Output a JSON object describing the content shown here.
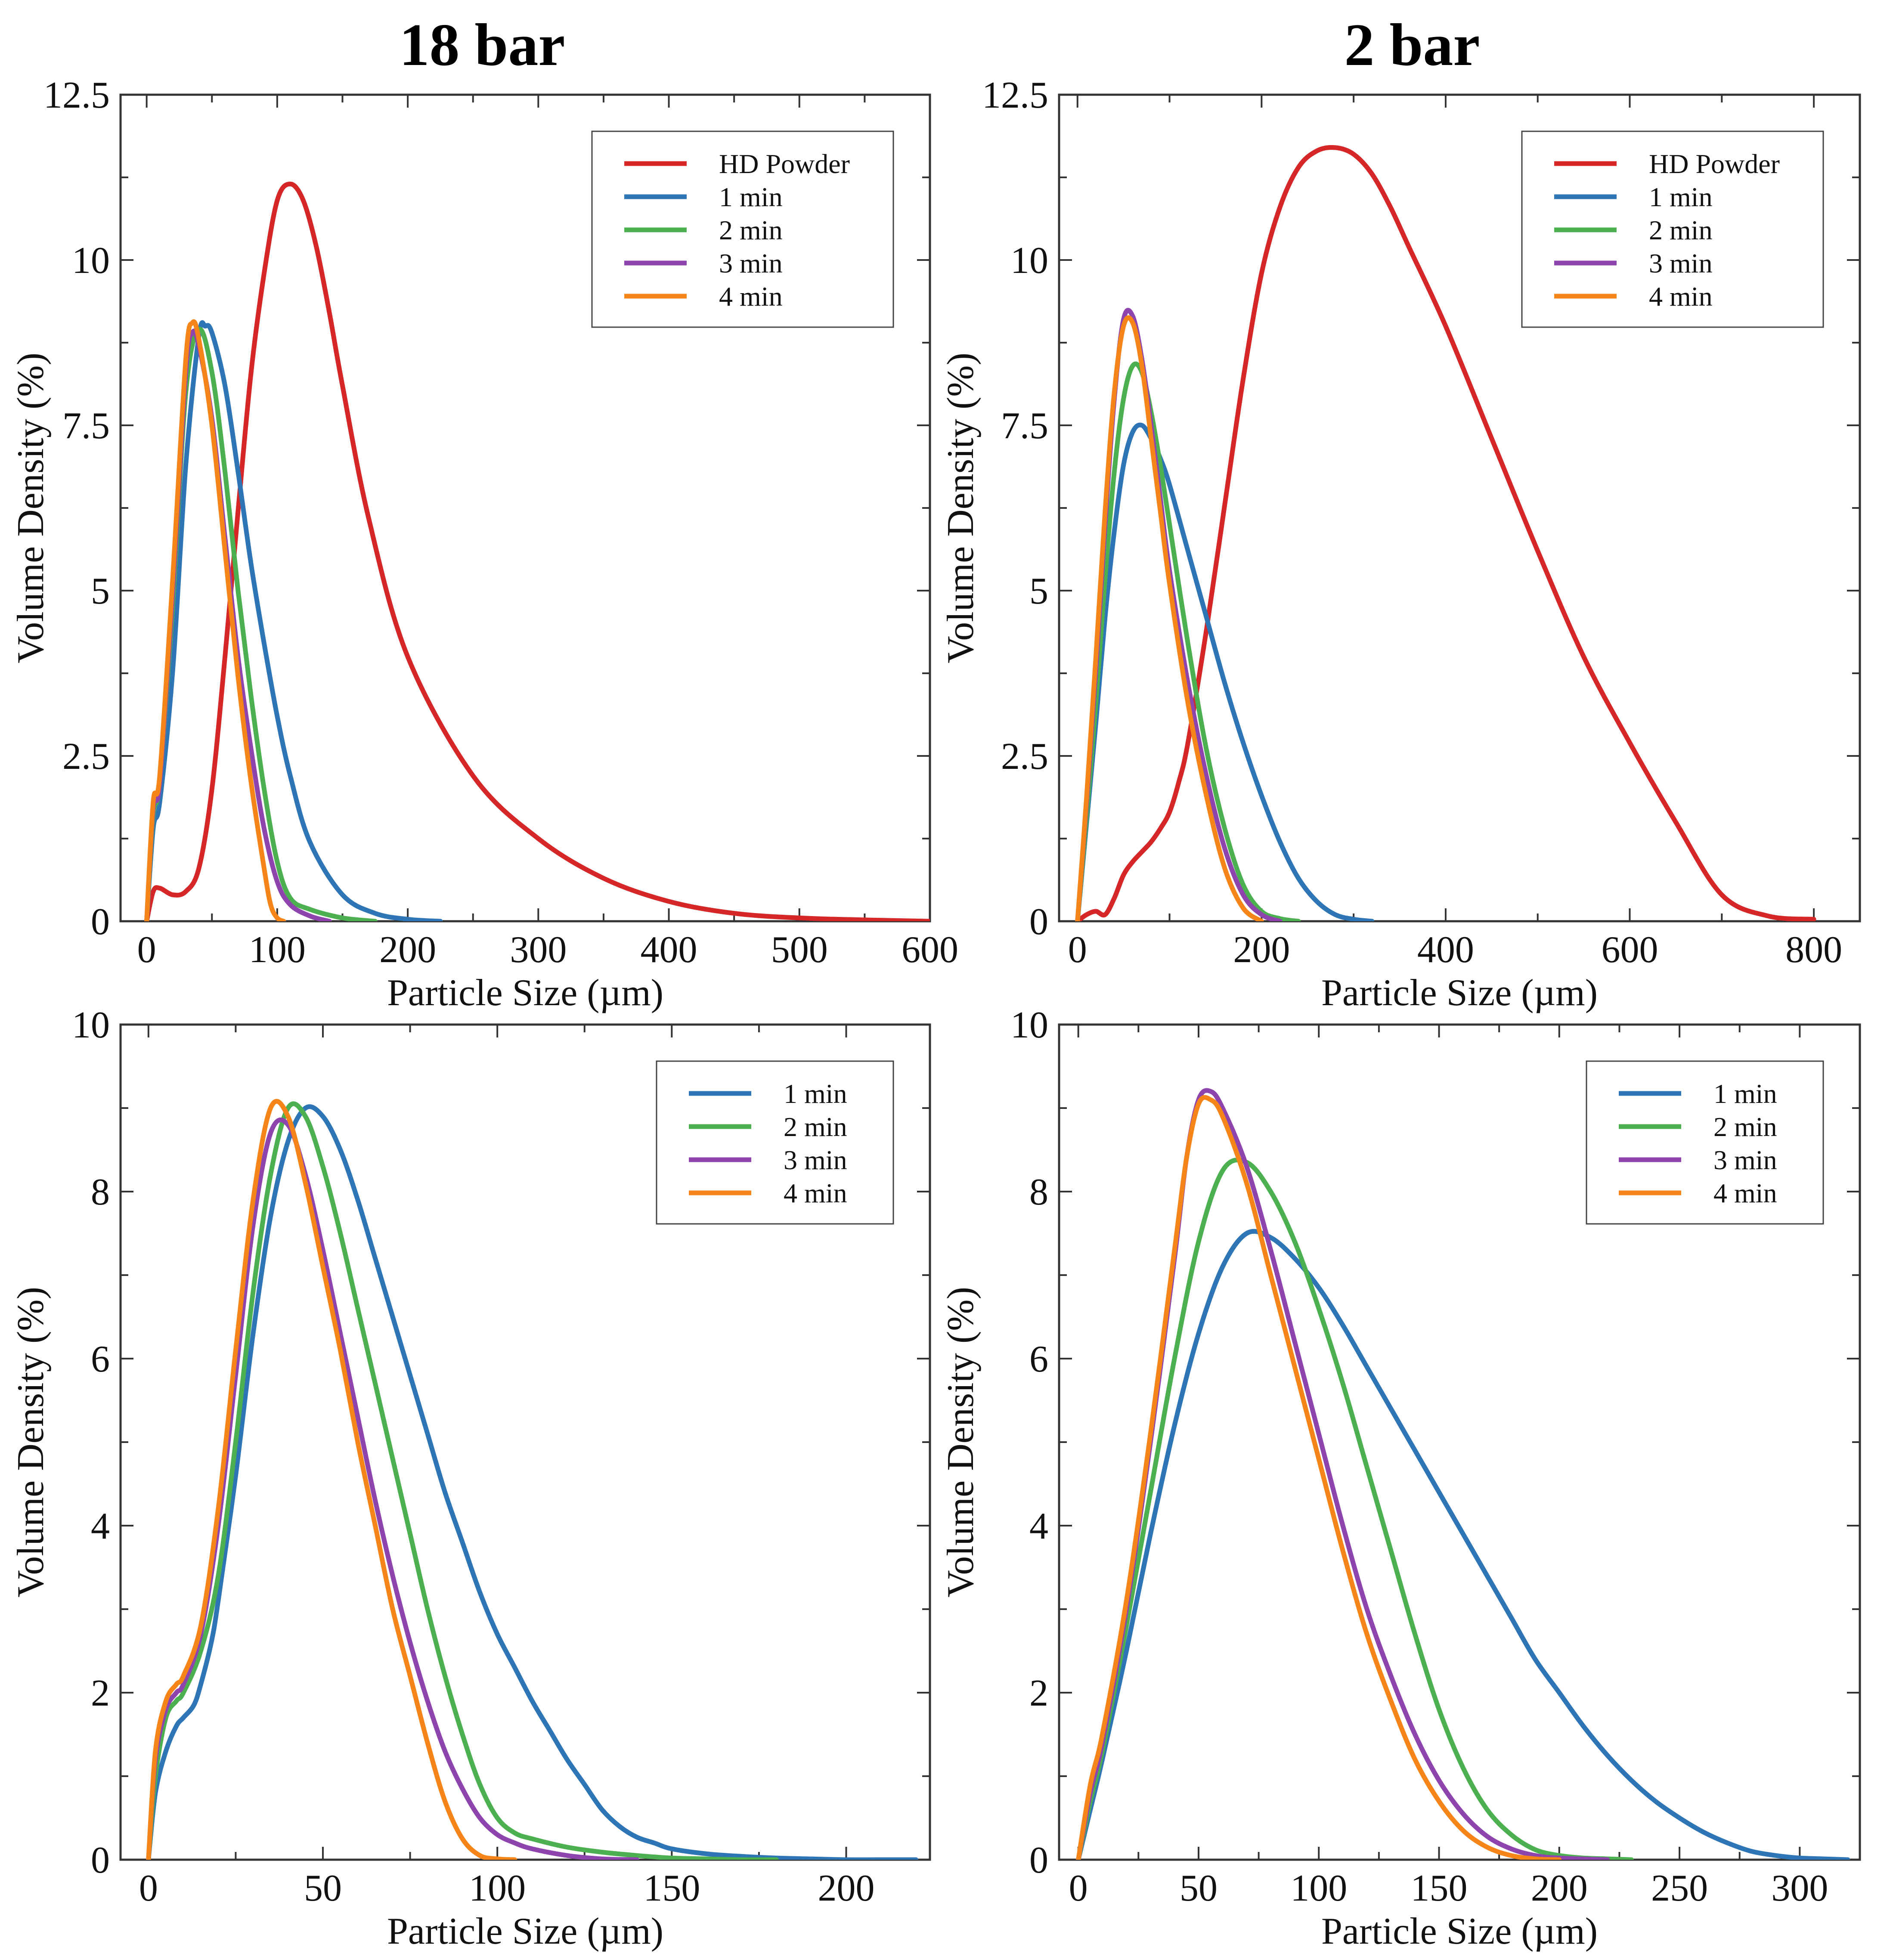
{
  "titles": {
    "left": "18 bar",
    "right": "2 bar"
  },
  "colors": {
    "HD Powder": "#d62728",
    "1 min": "#2e75b6",
    "2 min": "#4caf50",
    "3 min": "#8e44ad",
    "4 min": "#f58518"
  },
  "chart_data": [
    {
      "id": "tl",
      "type": "line",
      "title": "18 bar",
      "xlabel": "Particle Size (µm)",
      "ylabel": "Volume Density (%)",
      "xlim": [
        -20,
        600
      ],
      "ylim": [
        0,
        12.5
      ],
      "xticks": [
        0,
        100,
        200,
        300,
        400,
        500,
        600
      ],
      "yticks": [
        0,
        2.5,
        5,
        7.5,
        10,
        12.5
      ],
      "xtick_labels": [
        "0",
        "100",
        "200",
        "300",
        "400",
        "500",
        "600"
      ],
      "ytick_labels": [
        "0",
        "2.5",
        "5",
        "7.5",
        "10",
        "12.5"
      ],
      "legend_position": "top-right",
      "series": [
        {
          "name": "HD Powder",
          "x": [
            0,
            5,
            10,
            20,
            30,
            40,
            50,
            60,
            70,
            80,
            90,
            100,
            110,
            120,
            130,
            140,
            150,
            170,
            200,
            250,
            300,
            350,
            400,
            450,
            500,
            550,
            600
          ],
          "y": [
            0,
            0.45,
            0.5,
            0.4,
            0.45,
            0.8,
            2.0,
            4.0,
            6.2,
            8.3,
            9.8,
            10.9,
            11.15,
            10.9,
            10.2,
            9.2,
            8.1,
            6.1,
            4.0,
            2.2,
            1.25,
            0.65,
            0.3,
            0.12,
            0.05,
            0.02,
            0
          ]
        },
        {
          "name": "1 min",
          "x": [
            0,
            5,
            10,
            20,
            30,
            40,
            45,
            50,
            60,
            70,
            80,
            90,
            100,
            110,
            125,
            150,
            175,
            200,
            225
          ],
          "y": [
            0,
            1.4,
            1.8,
            3.8,
            6.9,
            8.85,
            9.0,
            8.9,
            8.1,
            6.8,
            5.4,
            4.2,
            3.1,
            2.2,
            1.2,
            0.4,
            0.12,
            0.03,
            0
          ]
        },
        {
          "name": "2 min",
          "x": [
            0,
            5,
            10,
            20,
            30,
            40,
            50,
            60,
            70,
            80,
            90,
            100,
            110,
            125,
            150,
            175
          ],
          "y": [
            0,
            1.6,
            2.1,
            4.8,
            8.0,
            8.95,
            8.3,
            6.8,
            5.0,
            3.4,
            2.0,
            0.9,
            0.35,
            0.18,
            0.05,
            0
          ]
        },
        {
          "name": "3 min",
          "x": [
            0,
            5,
            10,
            20,
            30,
            35,
            40,
            50,
            60,
            70,
            80,
            90,
            100,
            110,
            125,
            140
          ],
          "y": [
            0,
            1.7,
            2.1,
            5.0,
            8.3,
            8.9,
            8.7,
            7.6,
            5.8,
            4.0,
            2.6,
            1.4,
            0.6,
            0.25,
            0.08,
            0
          ]
        },
        {
          "name": "4 min",
          "x": [
            0,
            5,
            10,
            20,
            30,
            35,
            40,
            50,
            60,
            70,
            80,
            90,
            95,
            100,
            105
          ],
          "y": [
            0,
            1.8,
            2.2,
            5.2,
            8.5,
            9.05,
            8.8,
            7.5,
            5.6,
            3.7,
            2.1,
            0.8,
            0.25,
            0.05,
            0
          ]
        }
      ]
    },
    {
      "id": "tr",
      "type": "line",
      "title": "2 bar",
      "xlabel": "Particle Size (µm)",
      "ylabel": "Volume Density (%)",
      "xlim": [
        -20,
        850
      ],
      "ylim": [
        0,
        12.5
      ],
      "xticks": [
        0,
        200,
        400,
        600,
        800
      ],
      "yticks": [
        0,
        2.5,
        5,
        7.5,
        10,
        12.5
      ],
      "xtick_labels": [
        "0",
        "200",
        "400",
        "600",
        "800"
      ],
      "ytick_labels": [
        "0",
        "2.5",
        "5",
        "7.5",
        "10",
        "12.5"
      ],
      "legend_position": "top-right",
      "series": [
        {
          "name": "HD Powder",
          "x": [
            0,
            10,
            20,
            30,
            40,
            50,
            60,
            70,
            80,
            90,
            100,
            110,
            120,
            140,
            160,
            180,
            200,
            220,
            240,
            260,
            280,
            300,
            320,
            340,
            360,
            400,
            450,
            500,
            550,
            600,
            650,
            700,
            750,
            800
          ],
          "y": [
            0,
            0.1,
            0.15,
            0.1,
            0.35,
            0.7,
            0.9,
            1.05,
            1.2,
            1.4,
            1.65,
            2.1,
            2.7,
            4.4,
            6.3,
            8.2,
            9.8,
            10.8,
            11.4,
            11.65,
            11.7,
            11.6,
            11.3,
            10.8,
            10.2,
            9.0,
            7.3,
            5.6,
            4.0,
            2.7,
            1.5,
            0.4,
            0.08,
            0.03
          ]
        },
        {
          "name": "1 min",
          "x": [
            0,
            10,
            20,
            30,
            40,
            50,
            60,
            70,
            80,
            90,
            100,
            120,
            140,
            160,
            180,
            200,
            220,
            240,
            260,
            280,
            300,
            320
          ],
          "y": [
            0,
            1.5,
            3.0,
            4.6,
            5.9,
            6.9,
            7.4,
            7.5,
            7.3,
            7.0,
            6.6,
            5.6,
            4.6,
            3.6,
            2.7,
            1.9,
            1.2,
            0.65,
            0.3,
            0.1,
            0.03,
            0
          ]
        },
        {
          "name": "2 min",
          "x": [
            0,
            10,
            20,
            30,
            40,
            50,
            60,
            70,
            80,
            90,
            100,
            120,
            140,
            160,
            180,
            200,
            220,
            240
          ],
          "y": [
            0,
            1.6,
            3.3,
            5.2,
            6.8,
            7.9,
            8.4,
            8.3,
            7.7,
            6.9,
            6.0,
            4.2,
            2.6,
            1.4,
            0.55,
            0.15,
            0.04,
            0
          ]
        },
        {
          "name": "3 min",
          "x": [
            0,
            10,
            20,
            30,
            40,
            50,
            60,
            70,
            80,
            90,
            100,
            120,
            140,
            160,
            180,
            200,
            220
          ],
          "y": [
            0,
            1.8,
            3.8,
            6.0,
            7.9,
            9.1,
            9.15,
            8.5,
            7.5,
            6.4,
            5.3,
            3.6,
            2.2,
            1.1,
            0.4,
            0.1,
            0
          ]
        },
        {
          "name": "4 min",
          "x": [
            0,
            10,
            20,
            30,
            40,
            50,
            60,
            70,
            80,
            90,
            100,
            120,
            140,
            160,
            180,
            200
          ],
          "y": [
            0,
            1.9,
            4.0,
            6.2,
            8.0,
            9.0,
            9.05,
            8.4,
            7.3,
            6.2,
            5.1,
            3.3,
            1.9,
            0.8,
            0.2,
            0
          ]
        }
      ]
    },
    {
      "id": "bl",
      "type": "line",
      "xlabel": "Particle Size (µm)",
      "ylabel": "Volume Density (%)",
      "xlim": [
        -8,
        224
      ],
      "ylim": [
        0,
        10
      ],
      "xticks": [
        0,
        50,
        100,
        150,
        200
      ],
      "yticks": [
        0,
        2,
        4,
        6,
        8,
        10
      ],
      "xtick_labels": [
        "0",
        "50",
        "100",
        "150",
        "200"
      ],
      "ytick_labels": [
        "0",
        "2",
        "4",
        "6",
        "8",
        "10"
      ],
      "legend_position": "top-right",
      "series": [
        {
          "name": "1 min",
          "x": [
            0,
            2,
            5,
            8,
            10,
            13,
            15,
            18,
            20,
            25,
            30,
            35,
            40,
            45,
            50,
            55,
            60,
            65,
            70,
            75,
            80,
            85,
            90,
            95,
            100,
            105,
            110,
            115,
            120,
            125,
            130,
            135,
            140,
            145,
            150,
            160,
            170,
            180,
            190,
            200,
            210,
            220
          ],
          "y": [
            0,
            0.8,
            1.3,
            1.6,
            1.7,
            1.85,
            2.1,
            2.6,
            3.1,
            4.6,
            6.3,
            7.7,
            8.6,
            9.0,
            8.9,
            8.5,
            7.9,
            7.2,
            6.5,
            5.8,
            5.1,
            4.4,
            3.8,
            3.2,
            2.7,
            2.3,
            1.9,
            1.55,
            1.2,
            0.9,
            0.6,
            0.4,
            0.27,
            0.2,
            0.13,
            0.07,
            0.04,
            0.02,
            0.01,
            0,
            0,
            0
          ]
        },
        {
          "name": "2 min",
          "x": [
            0,
            2,
            5,
            8,
            10,
            15,
            20,
            25,
            30,
            35,
            40,
            45,
            50,
            55,
            60,
            65,
            70,
            75,
            80,
            85,
            90,
            95,
            100,
            105,
            110,
            120,
            130,
            140,
            150,
            160,
            170,
            180
          ],
          "y": [
            0,
            1.0,
            1.7,
            1.9,
            2.0,
            2.5,
            3.4,
            5.0,
            6.8,
            8.2,
            9.0,
            8.9,
            8.3,
            7.5,
            6.6,
            5.7,
            4.8,
            3.9,
            3.0,
            2.2,
            1.5,
            0.9,
            0.5,
            0.32,
            0.25,
            0.15,
            0.09,
            0.05,
            0.02,
            0.01,
            0,
            0
          ]
        },
        {
          "name": "3 min",
          "x": [
            0,
            2,
            5,
            8,
            10,
            15,
            20,
            25,
            30,
            35,
            40,
            45,
            50,
            55,
            60,
            65,
            70,
            75,
            80,
            85,
            90,
            95,
            100,
            105,
            110,
            120,
            130,
            140
          ],
          "y": [
            0,
            1.2,
            1.8,
            2.0,
            2.1,
            2.7,
            4.0,
            5.8,
            7.6,
            8.7,
            8.8,
            8.2,
            7.3,
            6.3,
            5.3,
            4.3,
            3.4,
            2.6,
            1.9,
            1.3,
            0.85,
            0.5,
            0.3,
            0.2,
            0.13,
            0.05,
            0.01,
            0
          ]
        },
        {
          "name": "4 min",
          "x": [
            0,
            2,
            5,
            8,
            10,
            15,
            20,
            25,
            30,
            35,
            40,
            45,
            50,
            55,
            60,
            65,
            70,
            75,
            80,
            85,
            90,
            95,
            100,
            105
          ],
          "y": [
            0,
            1.3,
            1.9,
            2.1,
            2.2,
            2.8,
            4.2,
            6.1,
            7.9,
            9.0,
            8.9,
            8.1,
            7.1,
            6.1,
            5.0,
            4.0,
            3.0,
            2.2,
            1.4,
            0.7,
            0.25,
            0.05,
            0.01,
            0
          ]
        }
      ]
    },
    {
      "id": "br",
      "type": "line",
      "xlabel": "Particle Size (µm)",
      "ylabel": "Volume Density (%)",
      "xlim": [
        -8,
        325
      ],
      "ylim": [
        0,
        10
      ],
      "xticks": [
        0,
        50,
        100,
        150,
        200,
        250,
        300
      ],
      "yticks": [
        0,
        2,
        4,
        6,
        8,
        10
      ],
      "xtick_labels": [
        "0",
        "50",
        "100",
        "150",
        "200",
        "250",
        "300"
      ],
      "ytick_labels": [
        "0",
        "2",
        "4",
        "6",
        "8",
        "10"
      ],
      "legend_position": "top-right",
      "series": [
        {
          "name": "1 min",
          "x": [
            0,
            5,
            10,
            20,
            30,
            40,
            50,
            60,
            70,
            80,
            90,
            100,
            110,
            120,
            130,
            140,
            150,
            160,
            170,
            180,
            190,
            200,
            210,
            220,
            230,
            240,
            250,
            260,
            270,
            280,
            290,
            300,
            310,
            320
          ],
          "y": [
            0,
            0.6,
            1.2,
            2.5,
            3.9,
            5.2,
            6.3,
            7.1,
            7.5,
            7.45,
            7.2,
            6.85,
            6.4,
            5.9,
            5.4,
            4.9,
            4.4,
            3.9,
            3.4,
            2.9,
            2.4,
            2.0,
            1.6,
            1.25,
            0.95,
            0.7,
            0.5,
            0.33,
            0.2,
            0.1,
            0.05,
            0.02,
            0.01,
            0
          ]
        },
        {
          "name": "2 min",
          "x": [
            0,
            5,
            10,
            20,
            30,
            40,
            50,
            60,
            70,
            80,
            90,
            100,
            110,
            120,
            130,
            140,
            150,
            160,
            170,
            180,
            190,
            200,
            210,
            220,
            230
          ],
          "y": [
            0,
            0.7,
            1.3,
            2.8,
            4.4,
            6.0,
            7.4,
            8.25,
            8.35,
            8.0,
            7.4,
            6.6,
            5.7,
            4.7,
            3.7,
            2.7,
            1.8,
            1.1,
            0.6,
            0.3,
            0.12,
            0.05,
            0.02,
            0.01,
            0
          ]
        },
        {
          "name": "3 min",
          "x": [
            0,
            5,
            10,
            20,
            30,
            40,
            45,
            50,
            55,
            60,
            70,
            80,
            90,
            100,
            110,
            120,
            130,
            140,
            150,
            160,
            170,
            180,
            190,
            200,
            220
          ],
          "y": [
            0,
            0.8,
            1.4,
            3.0,
            5.0,
            7.2,
            8.4,
            9.1,
            9.2,
            9.0,
            8.3,
            7.3,
            6.2,
            5.1,
            4.0,
            3.0,
            2.2,
            1.5,
            0.95,
            0.55,
            0.28,
            0.13,
            0.05,
            0.02,
            0
          ]
        },
        {
          "name": "4 min",
          "x": [
            0,
            5,
            10,
            20,
            30,
            40,
            45,
            50,
            55,
            60,
            70,
            80,
            90,
            100,
            110,
            120,
            130,
            140,
            150,
            160,
            170,
            180,
            190,
            200
          ],
          "y": [
            0,
            0.9,
            1.5,
            3.1,
            5.1,
            7.3,
            8.4,
            9.05,
            9.1,
            8.9,
            8.1,
            7.0,
            5.9,
            4.8,
            3.7,
            2.7,
            1.9,
            1.2,
            0.7,
            0.35,
            0.15,
            0.05,
            0.01,
            0
          ]
        }
      ]
    }
  ]
}
